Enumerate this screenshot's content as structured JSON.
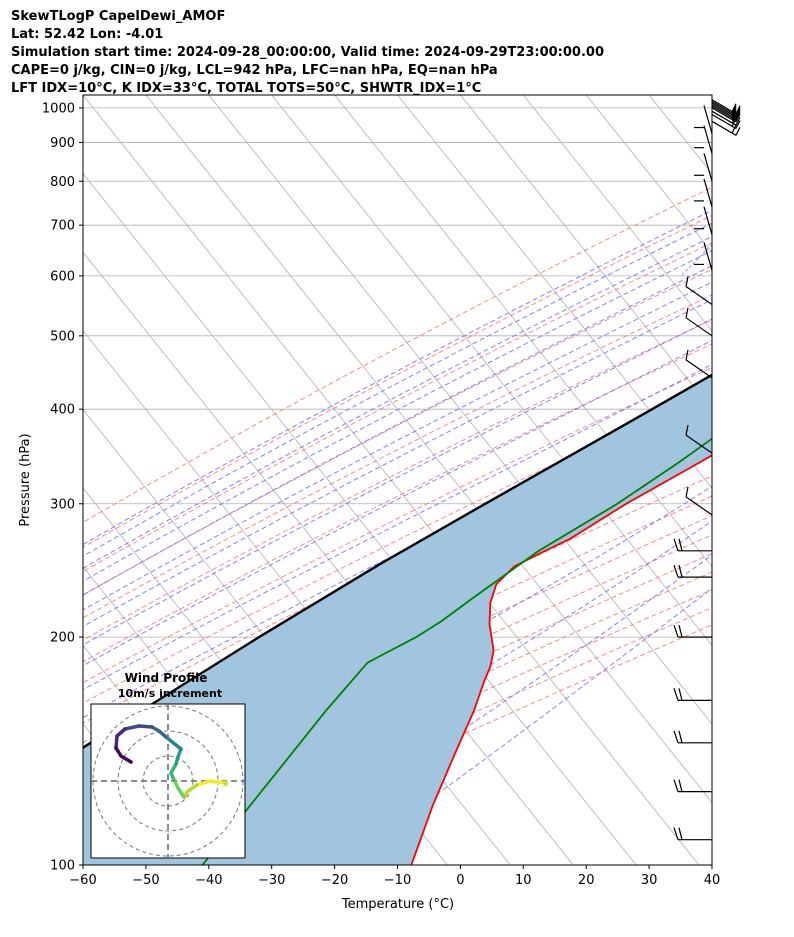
{
  "header": {
    "title": "SkewTLogP CapelDewi_AMOF",
    "location": "Lat: 52.42   Lon: -4.01",
    "times": "Simulation start time: 2024-09-28_00:00:00, Valid time: 2024-09-29T23:00:00.00",
    "indices1": "CAPE=0 j/kg, CIN=0 j/kg, LCL=942 hPa, LFC=nan hPa, EQ=nan hPa",
    "indices2": "LFT IDX=10°C, K IDX=33°C, TOTAL TOTS=50°C, SHWTR_IDX=1°C"
  },
  "chart_data": {
    "type": "line",
    "subtype": "skew-t log-p",
    "xlabel": "Temperature (°C)",
    "ylabel": "Pressure (hPa)",
    "xlim": [
      -60,
      40
    ],
    "ylim": [
      1040,
      100
    ],
    "y_scale": "log",
    "x_ticks": [
      "−60",
      "−50",
      "−40",
      "−30",
      "−20",
      "−10",
      "0",
      "10",
      "20",
      "30",
      "40"
    ],
    "y_ticks": [
      1000,
      900,
      800,
      700,
      600,
      500,
      400,
      300,
      200,
      100
    ],
    "grid": true,
    "colors": {
      "temperature": "#ff0000",
      "dewpoint": "#008000",
      "parcel": "#000000",
      "shade": "#a1c5df",
      "dry_adiabats": "#ff6060",
      "moist_adiabats": "#6464ff",
      "mixing_ratio": "#9966cc",
      "isotherms": "#b0b0b0"
    },
    "series": [],
    "profile": {
      "temperature": [
        [
          1000,
          12
        ],
        [
          985,
          10.5
        ],
        [
          975,
          11
        ],
        [
          965,
          12.8
        ],
        [
          945,
          13.8
        ],
        [
          900,
          14.2
        ],
        [
          850,
          14
        ],
        [
          800,
          13.4
        ],
        [
          750,
          12.3
        ],
        [
          700,
          11.2
        ],
        [
          600,
          8.5
        ],
        [
          500,
          3.8
        ],
        [
          480,
          2.4
        ],
        [
          450,
          -0.6
        ],
        [
          420,
          -4
        ],
        [
          400,
          -5.8
        ],
        [
          370,
          -9
        ],
        [
          340,
          -13.2
        ],
        [
          300,
          -19.6
        ],
        [
          270,
          -24
        ],
        [
          258,
          -27
        ],
        [
          248,
          -29.4
        ],
        [
          235,
          -30
        ],
        [
          222,
          -28.6
        ],
        [
          208,
          -26
        ],
        [
          192,
          -22
        ],
        [
          183,
          -20.5
        ],
        [
          175,
          -19.6
        ],
        [
          160,
          -17.5
        ],
        [
          140,
          -15
        ],
        [
          120,
          -12
        ],
        [
          110,
          -10
        ],
        [
          100,
          -7.8
        ]
      ],
      "dewpoint": [
        [
          990,
          9.5
        ],
        [
          975,
          10
        ],
        [
          955,
          11.5
        ],
        [
          920,
          13
        ],
        [
          890,
          13.4
        ],
        [
          850,
          13
        ],
        [
          800,
          12.2
        ],
        [
          750,
          11
        ],
        [
          700,
          10
        ],
        [
          600,
          8
        ],
        [
          500,
          3
        ],
        [
          470,
          1
        ],
        [
          440,
          -3
        ],
        [
          420,
          -6.5
        ],
        [
          380,
          -13
        ],
        [
          340,
          -16.5
        ],
        [
          300,
          -21
        ],
        [
          260,
          -27.5
        ],
        [
          225,
          -32
        ],
        [
          210,
          -34
        ],
        [
          200,
          -36
        ],
        [
          190,
          -39
        ],
        [
          185,
          -40.5
        ],
        [
          160,
          -41
        ],
        [
          120,
          -41
        ],
        [
          100,
          -41
        ]
      ],
      "parcel": [
        [
          1000,
          12
        ],
        [
          980,
          10.5
        ],
        [
          942,
          9.8
        ],
        [
          900,
          8.2
        ],
        [
          800,
          4.2
        ],
        [
          700,
          -1
        ],
        [
          600,
          -8
        ],
        [
          500,
          -16.5
        ],
        [
          400,
          -27.5
        ],
        [
          300,
          -42
        ],
        [
          250,
          -51
        ],
        [
          200,
          -61
        ],
        [
          150,
          -73
        ],
        [
          100,
          -89
        ]
      ],
      "lcl_pressure": 942
    },
    "wind_barbs_pressure": [
      1025,
      1020,
      1015,
      1010,
      1005,
      1000,
      990,
      980,
      960,
      925,
      870,
      800,
      740,
      680,
      610,
      550,
      500,
      440,
      350,
      290,
      260,
      240,
      200,
      165,
      145,
      125,
      108
    ],
    "wind_profile": {
      "title": "Wind Profile",
      "subtitle": "10m/s increment",
      "colormap": "viridis"
    }
  }
}
